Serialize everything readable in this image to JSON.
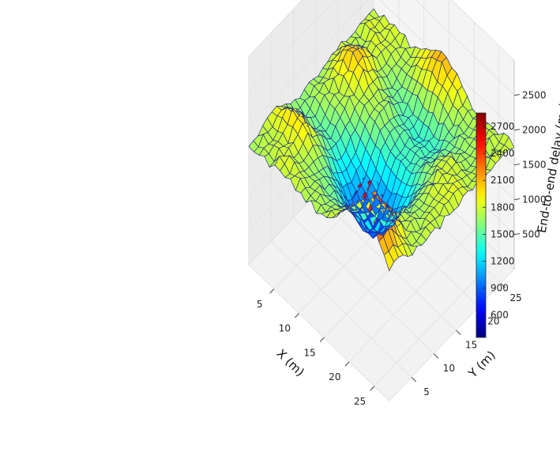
{
  "chart_data": {
    "type": "surface",
    "title": "",
    "xlabel": "X (m)",
    "ylabel": "Y (m)",
    "zlabel": "End-to-end delay (ms)",
    "xlim": [
      0,
      28
    ],
    "ylim": [
      0,
      28
    ],
    "zlim": [
      0,
      3000
    ],
    "x_ticks": [
      "5",
      "10",
      "15",
      "20",
      "25"
    ],
    "y_ticks": [
      "5",
      "10",
      "15",
      "20",
      "25"
    ],
    "z_ticks": [
      "500",
      "1000",
      "1500",
      "2000",
      "2500"
    ],
    "colormap": "jet",
    "colorbar": {
      "range": [
        350,
        2850
      ],
      "ticks": [
        "600",
        "900",
        "1200",
        "1500",
        "1800",
        "2100",
        "2400",
        "2700"
      ]
    },
    "grid": true,
    "z_values": [
      [
        1700,
        1713,
        1712,
        1788,
        1832,
        1847,
        1862,
        1787,
        1753,
        1682,
        1676,
        1623,
        1680,
        1710,
        1692,
        1660,
        1708,
        1722,
        1770,
        1750,
        1806,
        1735,
        1737,
        1742,
        1782,
        1774,
        1786,
        1786
      ],
      [
        1694,
        1698,
        1807,
        1766,
        1773,
        1863,
        1877,
        1850,
        1720,
        1640,
        1632,
        1663,
        1641,
        1733,
        1699,
        1715,
        1758,
        1826,
        1826,
        1872,
        1818,
        1767,
        1795,
        1722,
        1863,
        1836,
        1792,
        1743
      ],
      [
        1720,
        1753,
        1739,
        1724,
        1782,
        1909,
        1981,
        1907,
        1829,
        1644,
        1568,
        1619,
        1721,
        1714,
        1780,
        1757,
        1858,
        1878,
        1966,
        1972,
        1899,
        1807,
        1703,
        1740,
        1848,
        1808,
        1829,
        1840
      ],
      [
        1777,
        1743,
        1795,
        1780,
        1832,
        1884,
        2035,
        1925,
        1846,
        1705,
        1636,
        1576,
        1682,
        1747,
        1712,
        1853,
        1831,
        1975,
        2049,
        2007,
        1975,
        1892,
        1763,
        1825,
        1874,
        1795,
        1792,
        1789
      ],
      [
        1694,
        1702,
        1825,
        1782,
        1754,
        1923,
        1975,
        1994,
        1727,
        1641,
        1539,
        1530,
        1608,
        1696,
        1759,
        1715,
        1887,
        1889,
        2083,
        2059,
        2016,
        1932,
        1774,
        1827,
        1797,
        1773,
        1847,
        1847
      ],
      [
        1795,
        1853,
        1783,
        1833,
        1840,
        1885,
        1975,
        1911,
        1788,
        1640,
        1587,
        1506,
        1558,
        1692,
        1717,
        1736,
        1812,
        1940,
        1993,
        2032,
        1941,
        1898,
        1793,
        1809,
        1803,
        1783,
        1792,
        1806
      ],
      [
        1787,
        1815,
        1865,
        1759,
        1767,
        1830,
        1912,
        1777,
        1738,
        1668,
        1544,
        1476,
        1585,
        1641,
        1702,
        1803,
        1755,
        1857,
        1984,
        1872,
        1847,
        1737,
        1707,
        1719,
        1782,
        1788,
        1739,
        1848
      ],
      [
        1760,
        1749,
        1846,
        1753,
        1721,
        1757,
        1803,
        1735,
        1647,
        1521,
        1474,
        1479,
        1493,
        1576,
        1600,
        1704,
        1742,
        1763,
        1815,
        1805,
        1809,
        1726,
        1671,
        1712,
        1711,
        1739,
        1795,
        1734
      ],
      [
        1815,
        1786,
        1775,
        1715,
        1704,
        1711,
        1699,
        1664,
        1565,
        1486,
        1372,
        1342,
        1386,
        1508,
        1539,
        1630,
        1750,
        1747,
        1747,
        1776,
        1683,
        1641,
        1578,
        1647,
        1717,
        1729,
        1737,
        1823
      ],
      [
        1720,
        1827,
        1760,
        1708,
        1669,
        1639,
        1620,
        1581,
        1408,
        1341,
        1277,
        1252,
        1303,
        1354,
        1485,
        1599,
        1667,
        1701,
        1712,
        1681,
        1677,
        1574,
        1611,
        1597,
        1709,
        1741,
        1813,
        1858
      ],
      [
        1760,
        1759,
        1696,
        1716,
        1670,
        1644,
        1565,
        1467,
        1367,
        1206,
        1187,
        1135,
        1239,
        1265,
        1413,
        1519,
        1661,
        1719,
        1722,
        1742,
        1620,
        1582,
        1521,
        1629,
        1726,
        1847,
        1879,
        1940
      ],
      [
        1694,
        1721,
        1722,
        1734,
        1598,
        1605,
        1514,
        1406,
        1258,
        1087,
        1037,
        1074,
        1093,
        1192,
        1357,
        1460,
        1605,
        1605,
        1609,
        1586,
        1547,
        1467,
        1572,
        1642,
        1754,
        1856,
        1939,
        1984
      ],
      [
        1791,
        1712,
        1744,
        1653,
        1574,
        1591,
        1466,
        1305,
        1141,
        998,
        924,
        937,
        1042,
        1150,
        1267,
        1457,
        1509,
        1577,
        1578,
        1536,
        1485,
        1513,
        1486,
        1687,
        1763,
        1921,
        2034,
        2064
      ],
      [
        1679,
        1734,
        1672,
        1657,
        1608,
        1493,
        1390,
        1236,
        1091,
        916,
        872,
        839,
        927,
        1070,
        1206,
        1342,
        1450,
        1487,
        1538,
        1551,
        1478,
        1453,
        1506,
        1604,
        1767,
        1958,
        2060,
        2117
      ],
      [
        1749,
        1700,
        1707,
        1675,
        1567,
        1499,
        1408,
        1242,
        1049,
        870,
        782,
        769,
        836,
        1030,
        1143,
        1324,
        1427,
        1431,
        1465,
        1522,
        1405,
        1387,
        1504,
        1600,
        1808,
        1893,
        2105,
        2102
      ],
      [
        1762,
        1798,
        1741,
        1693,
        1649,
        1495,
        1416,
        1268,
        1060,
        907,
        766,
        780,
        889,
        1051,
        1128,
        1298,
        1458,
        1436,
        1484,
        1463,
        1441,
        1396,
        1520,
        1659,
        1810,
        1901,
        1986,
        2026
      ],
      [
        1835,
        1780,
        1795,
        1742,
        1698,
        1599,
        1478,
        1268,
        1102,
        1000,
        901,
        813,
        939,
        1051,
        1201,
        1301,
        1427,
        1422,
        1500,
        1511,
        1455,
        1472,
        1459,
        1565,
        1761,
        1872,
        1936,
        2019
      ],
      [
        1962,
        1939,
        1900,
        1893,
        1810,
        1679,
        1555,
        1416,
        1181,
        1060,
        1005,
        987,
        1021,
        1132,
        1230,
        1334,
        1423,
        1494,
        1503,
        1444,
        1451,
        1418,
        1474,
        1658,
        1706,
        1770,
        1905,
        1908
      ],
      [
        2068,
        2045,
        2006,
        1995,
        1955,
        1793,
        1646,
        1511,
        1380,
        1214,
        1173,
        1093,
        1143,
        1238,
        1291,
        1379,
        1503,
        1514,
        1547,
        1511,
        1507,
        1477,
        1560,
        1606,
        1620,
        1772,
        1771,
        1836
      ],
      [
        2186,
        2260,
        2295,
        2137,
        2029,
        1974,
        1788,
        1684,
        1513,
        1403,
        1307,
        1323,
        1283,
        1304,
        1405,
        1490,
        1586,
        1658,
        1577,
        1555,
        1602,
        1561,
        1591,
        1580,
        1700,
        1713,
        1769,
        1718
      ],
      [
        2379,
        2491,
        2429,
        2321,
        2196,
        2088,
        1914,
        1766,
        1661,
        1572,
        1508,
        1454,
        1465,
        1488,
        1533,
        1538,
        1651,
        1658,
        1714,
        1682,
        1601,
        1599,
        1601,
        1698,
        1655,
        1680,
        1726,
        1710
      ],
      [
        2496,
        2682,
        2665,
        2517,
        2311,
        2182,
        1979,
        1862,
        1680,
        1616,
        1656,
        1562,
        1608,
        1628,
        1650,
        1671,
        1691,
        1758,
        1766,
        1750,
        1743,
        1642,
        1645,
        1719,
        1669,
        1712,
        1774,
        1715
      ],
      [
        2569,
        2715,
        2686,
        2578,
        2333,
        2120,
        1909,
        1847,
        1771,
        1724,
        1637,
        1696,
        1702,
        1710,
        1758,
        1708,
        1843,
        1779,
        1816,
        1821,
        1668,
        1720,
        1667,
        1699,
        1726,
        1749,
        1774,
        1736
      ],
      [
        2455,
        2590,
        2538,
        2421,
        2296,
        2083,
        1902,
        1793,
        1738,
        1736,
        1726,
        1701,
        1710,
        1786,
        1839,
        1787,
        1847,
        1787,
        1801,
        1808,
        1739,
        1710,
        1690,
        1725,
        1702,
        1705,
        1782,
        1743
      ],
      [
        2351,
        2373,
        2384,
        2271,
        2124,
        1930,
        1919,
        1741,
        1808,
        1779,
        1700,
        1720,
        1741,
        1775,
        1790,
        1850,
        1787,
        1840,
        1766,
        1775,
        1691,
        1688,
        1727,
        1733,
        1725,
        1813,
        1796,
        1715
      ],
      [
        2147,
        2145,
        2186,
        2098,
        1962,
        1859,
        1767,
        1798,
        1721,
        1689,
        1777,
        1796,
        1792,
        1801,
        1809,
        1816,
        1860,
        1828,
        1785,
        1768,
        1734,
        1745,
        1732,
        1752,
        1684,
        1721,
        1748,
        1813
      ],
      [
        2026,
        2005,
        2035,
        1923,
        1908,
        1829,
        1734,
        1729,
        1762,
        1800,
        1789,
        1773,
        1751,
        1838,
        1817,
        1862,
        1849,
        1815,
        1742,
        1755,
        1775,
        1791,
        1716,
        1805,
        1822,
        1764,
        1783,
        1828
      ],
      [
        1869,
        1929,
        1926,
        1886,
        1794,
        1745,
        1805,
        1744,
        1749,
        1781,
        1788,
        1701,
        1817,
        1764,
        1758,
        1751,
        1822,
        1826,
        1767,
        1820,
        1692,
        1784,
        1773,
        1803,
        1804,
        1813,
        1796,
        1747
      ]
    ]
  }
}
